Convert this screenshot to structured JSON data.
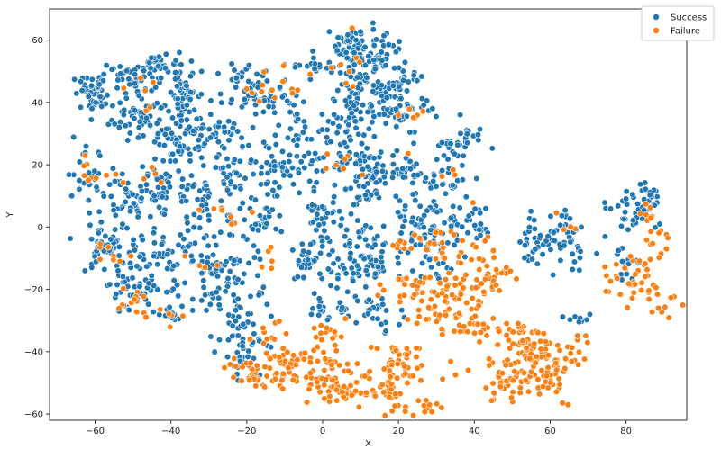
{
  "chart_data": {
    "type": "scatter",
    "xlabel": "X",
    "ylabel": "Y",
    "xlim": [
      -72,
      96
    ],
    "ylim": [
      -62,
      70
    ],
    "xticks": [
      -60,
      -40,
      -20,
      0,
      20,
      40,
      60,
      80
    ],
    "yticks": [
      -60,
      -40,
      -20,
      0,
      20,
      40,
      60
    ],
    "grid": false,
    "legend_position": "top-right",
    "series": [
      {
        "name": "Success",
        "color": "#1f77b4",
        "clusters": [
          {
            "cx": -60,
            "cy": 43,
            "sx": 3,
            "sy": 3,
            "n": 50
          },
          {
            "cx": -50,
            "cy": 48,
            "sx": 3,
            "sy": 2,
            "n": 30
          },
          {
            "cx": -48,
            "cy": 35,
            "sx": 4,
            "sy": 4,
            "n": 60
          },
          {
            "cx": -42,
            "cy": 52,
            "sx": 3,
            "sy": 2,
            "n": 35
          },
          {
            "cx": -36,
            "cy": 44,
            "sx": 2,
            "sy": 5,
            "n": 45
          },
          {
            "cx": -35,
            "cy": 30,
            "sx": 2,
            "sy": 4,
            "n": 30
          },
          {
            "cx": -40,
            "cy": 24,
            "sx": 3,
            "sy": 6,
            "n": 40
          },
          {
            "cx": -27,
            "cy": 30,
            "sx": 2,
            "sy": 2,
            "n": 15
          },
          {
            "cx": -62,
            "cy": 18,
            "sx": 3,
            "sy": 4,
            "n": 25
          },
          {
            "cx": -52,
            "cy": 10,
            "sx": 4,
            "sy": 4,
            "n": 35
          },
          {
            "cx": -42,
            "cy": 12,
            "sx": 4,
            "sy": 3,
            "n": 35
          },
          {
            "cx": -33,
            "cy": 10,
            "sx": 3,
            "sy": 4,
            "n": 25
          },
          {
            "cx": -58,
            "cy": -5,
            "sx": 4,
            "sy": 6,
            "n": 50
          },
          {
            "cx": -50,
            "cy": -10,
            "sx": 3,
            "sy": 7,
            "n": 40
          },
          {
            "cx": -40,
            "cy": -8,
            "sx": 3,
            "sy": 4,
            "n": 30
          },
          {
            "cx": -47,
            "cy": -20,
            "sx": 5,
            "sy": 4,
            "n": 40
          },
          {
            "cx": -40,
            "cy": -28,
            "sx": 2,
            "sy": 2,
            "n": 12
          },
          {
            "cx": -25,
            "cy": 12,
            "sx": 3,
            "sy": 10,
            "n": 55
          },
          {
            "cx": -33,
            "cy": -10,
            "sx": 3,
            "sy": 7,
            "n": 35
          },
          {
            "cx": -25,
            "cy": -15,
            "sx": 5,
            "sy": 6,
            "n": 45
          },
          {
            "cx": -22,
            "cy": -28,
            "sx": 4,
            "sy": 5,
            "n": 40
          },
          {
            "cx": -20,
            "cy": -40,
            "sx": 3,
            "sy": 5,
            "n": 30
          },
          {
            "cx": -20,
            "cy": 45,
            "sx": 4,
            "sy": 5,
            "n": 45
          },
          {
            "cx": -12,
            "cy": 42,
            "sx": 3,
            "sy": 3,
            "n": 20
          },
          {
            "cx": -14,
            "cy": 20,
            "sx": 4,
            "sy": 5,
            "n": 40
          },
          {
            "cx": -4,
            "cy": 20,
            "sx": 4,
            "sy": 4,
            "n": 30
          },
          {
            "cx": -16,
            "cy": 3,
            "sx": 3,
            "sy": 4,
            "n": 30
          },
          {
            "cx": -6,
            "cy": 32,
            "sx": 3,
            "sy": 3,
            "n": 20
          },
          {
            "cx": -2,
            "cy": 52,
            "sx": 3,
            "sy": 2,
            "n": 20
          },
          {
            "cx": 8,
            "cy": 58,
            "sx": 3,
            "sy": 3,
            "n": 40
          },
          {
            "cx": 14,
            "cy": 55,
            "sx": 4,
            "sy": 4,
            "n": 40
          },
          {
            "cx": 10,
            "cy": 48,
            "sx": 4,
            "sy": 5,
            "n": 50
          },
          {
            "cx": 20,
            "cy": 46,
            "sx": 4,
            "sy": 4,
            "n": 35
          },
          {
            "cx": 12,
            "cy": 38,
            "sx": 5,
            "sy": 4,
            "n": 45
          },
          {
            "cx": 22,
            "cy": 35,
            "sx": 4,
            "sy": 3,
            "n": 30
          },
          {
            "cx": 4,
            "cy": 32,
            "sx": 3,
            "sy": 3,
            "n": 25
          },
          {
            "cx": 10,
            "cy": 20,
            "sx": 5,
            "sy": 3,
            "n": 35
          },
          {
            "cx": 18,
            "cy": 17,
            "sx": 5,
            "sy": 3,
            "n": 40
          },
          {
            "cx": 30,
            "cy": 15,
            "sx": 5,
            "sy": 3,
            "n": 35
          },
          {
            "cx": 34,
            "cy": 25,
            "sx": 3,
            "sy": 3,
            "n": 25
          },
          {
            "cx": 40,
            "cy": 28,
            "sx": 2,
            "sy": 2,
            "n": 10
          },
          {
            "cx": 7,
            "cy": 10,
            "sx": 4,
            "sy": 2,
            "n": 20
          },
          {
            "cx": 0,
            "cy": 2,
            "sx": 3,
            "sy": 4,
            "n": 30
          },
          {
            "cx": 8,
            "cy": 0,
            "sx": 3,
            "sy": 3,
            "n": 20
          },
          {
            "cx": -4,
            "cy": -12,
            "sx": 3,
            "sy": 3,
            "n": 25
          },
          {
            "cx": 6,
            "cy": -12,
            "sx": 4,
            "sy": 4,
            "n": 35
          },
          {
            "cx": 14,
            "cy": -10,
            "sx": 4,
            "sy": 4,
            "n": 35
          },
          {
            "cx": 6,
            "cy": -25,
            "sx": 5,
            "sy": 3,
            "n": 35
          },
          {
            "cx": 16,
            "cy": -28,
            "sx": 3,
            "sy": 3,
            "n": 15
          },
          {
            "cx": 24,
            "cy": 0,
            "sx": 4,
            "sy": 4,
            "n": 35
          },
          {
            "cx": 32,
            "cy": 0,
            "sx": 4,
            "sy": 4,
            "n": 30
          },
          {
            "cx": 28,
            "cy": -12,
            "sx": 4,
            "sy": 4,
            "n": 25
          },
          {
            "cx": 40,
            "cy": 0,
            "sx": 3,
            "sy": 4,
            "n": 25
          },
          {
            "cx": 56,
            "cy": -5,
            "sx": 3,
            "sy": 3,
            "n": 25
          },
          {
            "cx": 62,
            "cy": 0,
            "sx": 3,
            "sy": 4,
            "n": 25
          },
          {
            "cx": 66,
            "cy": -8,
            "sx": 3,
            "sy": 4,
            "n": 20
          },
          {
            "cx": 80,
            "cy": 5,
            "sx": 4,
            "sy": 4,
            "n": 35
          },
          {
            "cx": 86,
            "cy": 9,
            "sx": 2,
            "sy": 2,
            "n": 20
          },
          {
            "cx": 80,
            "cy": -12,
            "sx": 2,
            "sy": 3,
            "n": 15
          },
          {
            "cx": 68,
            "cy": -29,
            "sx": 2,
            "sy": 1,
            "n": 8
          }
        ]
      },
      {
        "name": "Failure",
        "color": "#ff7f0e",
        "clusters": [
          {
            "cx": -62,
            "cy": 18,
            "sx": 2,
            "sy": 4,
            "n": 6
          },
          {
            "cx": -55,
            "cy": 17,
            "sx": 2,
            "sy": 2,
            "n": 4
          },
          {
            "cx": -47,
            "cy": 42,
            "sx": 2,
            "sy": 5,
            "n": 6
          },
          {
            "cx": -42,
            "cy": 18,
            "sx": 2,
            "sy": 2,
            "n": 4
          },
          {
            "cx": -56,
            "cy": -7,
            "sx": 2,
            "sy": 2,
            "n": 8
          },
          {
            "cx": -50,
            "cy": -23,
            "sx": 3,
            "sy": 3,
            "n": 12
          },
          {
            "cx": -41,
            "cy": -28,
            "sx": 2,
            "sy": 2,
            "n": 5
          },
          {
            "cx": -33,
            "cy": -12,
            "sx": 2,
            "sy": 3,
            "n": 4
          },
          {
            "cx": -30,
            "cy": 5,
            "sx": 2,
            "sy": 2,
            "n": 4
          },
          {
            "cx": -22,
            "cy": 3,
            "sx": 2,
            "sy": 4,
            "n": 4
          },
          {
            "cx": -18,
            "cy": 45,
            "sx": 4,
            "sy": 3,
            "n": 8
          },
          {
            "cx": -8,
            "cy": 48,
            "sx": 3,
            "sy": 3,
            "n": 6
          },
          {
            "cx": 6,
            "cy": 55,
            "sx": 3,
            "sy": 6,
            "n": 8
          },
          {
            "cx": 22,
            "cy": 36,
            "sx": 3,
            "sy": 2,
            "n": 6
          },
          {
            "cx": 6,
            "cy": 20,
            "sx": 5,
            "sy": 3,
            "n": 8
          },
          {
            "cx": -15,
            "cy": -12,
            "sx": 2,
            "sy": 4,
            "n": 5
          },
          {
            "cx": -15,
            "cy": -32,
            "sx": 3,
            "sy": 3,
            "n": 8
          },
          {
            "cx": -20,
            "cy": -47,
            "sx": 3,
            "sy": 3,
            "n": 25
          },
          {
            "cx": -12,
            "cy": -45,
            "sx": 4,
            "sy": 4,
            "n": 40
          },
          {
            "cx": -2,
            "cy": -45,
            "sx": 4,
            "sy": 4,
            "n": 35
          },
          {
            "cx": 3,
            "cy": -35,
            "sx": 3,
            "sy": 3,
            "n": 15
          },
          {
            "cx": 5,
            "cy": -52,
            "sx": 4,
            "sy": 3,
            "n": 45
          },
          {
            "cx": 12,
            "cy": -48,
            "sx": 3,
            "sy": 4,
            "n": 25
          },
          {
            "cx": 19,
            "cy": -50,
            "sx": 3,
            "sy": 5,
            "n": 40
          },
          {
            "cx": 22,
            "cy": -42,
            "sx": 2,
            "sy": 4,
            "n": 20
          },
          {
            "cx": 26,
            "cy": -58,
            "sx": 3,
            "sy": 1,
            "n": 12
          },
          {
            "cx": 24,
            "cy": -20,
            "sx": 4,
            "sy": 4,
            "n": 25
          },
          {
            "cx": 30,
            "cy": -25,
            "sx": 4,
            "sy": 5,
            "n": 35
          },
          {
            "cx": 36,
            "cy": -20,
            "sx": 4,
            "sy": 4,
            "n": 25
          },
          {
            "cx": 40,
            "cy": -32,
            "sx": 5,
            "sy": 3,
            "n": 30
          },
          {
            "cx": 44,
            "cy": -18,
            "sx": 3,
            "sy": 3,
            "n": 25
          },
          {
            "cx": 32,
            "cy": -5,
            "sx": 4,
            "sy": 3,
            "n": 20
          },
          {
            "cx": 22,
            "cy": -5,
            "sx": 3,
            "sy": 2,
            "n": 10
          },
          {
            "cx": 44,
            "cy": -8,
            "sx": 3,
            "sy": 2,
            "n": 10
          },
          {
            "cx": 52,
            "cy": -35,
            "sx": 3,
            "sy": 3,
            "n": 35
          },
          {
            "cx": 56,
            "cy": -42,
            "sx": 4,
            "sy": 4,
            "n": 50
          },
          {
            "cx": 48,
            "cy": -50,
            "sx": 4,
            "sy": 3,
            "n": 40
          },
          {
            "cx": 60,
            "cy": -48,
            "sx": 3,
            "sy": 4,
            "n": 35
          },
          {
            "cx": 66,
            "cy": -40,
            "sx": 3,
            "sy": 3,
            "n": 12
          },
          {
            "cx": 63,
            "cy": 2,
            "sx": 2,
            "sy": 2,
            "n": 4
          },
          {
            "cx": 80,
            "cy": -18,
            "sx": 3,
            "sy": 4,
            "n": 25
          },
          {
            "cx": 86,
            "cy": -15,
            "sx": 2,
            "sy": 5,
            "n": 15
          },
          {
            "cx": 88,
            "cy": -3,
            "sx": 2,
            "sy": 3,
            "n": 10
          },
          {
            "cx": 90,
            "cy": -25,
            "sx": 2,
            "sy": 2,
            "n": 8
          },
          {
            "cx": 86,
            "cy": 5,
            "sx": 2,
            "sy": 2,
            "n": 6
          },
          {
            "cx": 33,
            "cy": -48,
            "sx": 2,
            "sy": 2,
            "n": 3
          },
          {
            "cx": 34,
            "cy": 18,
            "sx": 2,
            "sy": 2,
            "n": 3
          }
        ]
      }
    ]
  }
}
